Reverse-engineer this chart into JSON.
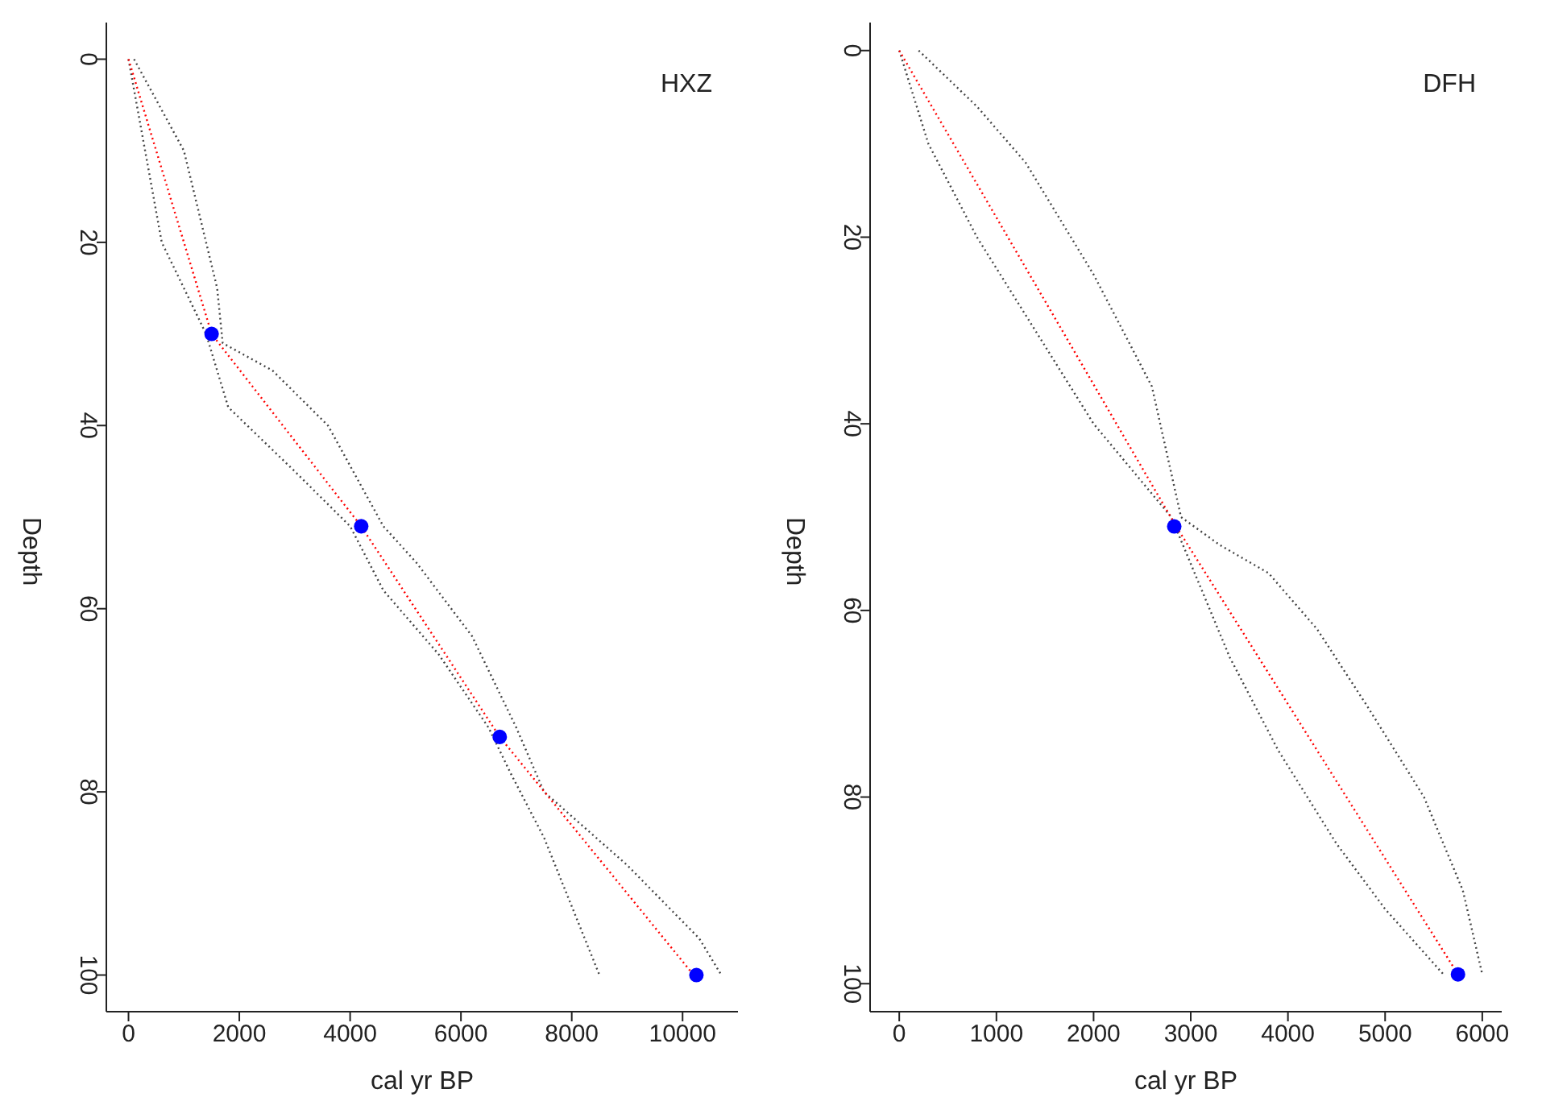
{
  "chart_data": [
    {
      "type": "line",
      "annotations": [
        "HXZ"
      ],
      "xlabel": "cal yr BP",
      "ylabel": "Depth",
      "xlim": [
        -400,
        11000
      ],
      "xticks": [
        0,
        2000,
        4000,
        6000,
        8000,
        10000
      ],
      "ylim": [
        104,
        -4
      ],
      "yticks": [
        0,
        20,
        40,
        60,
        80,
        100
      ],
      "line_style": "dotted",
      "marker": "none",
      "series": [
        {
          "color": "#444444",
          "x": [
            0,
            600,
            1400,
            1800,
            3000,
            4000,
            4600,
            5600,
            6500,
            6900,
            7500,
            8500
          ],
          "values": [
            0,
            20,
            30,
            38,
            45,
            51,
            58,
            65,
            73,
            78,
            85,
            100
          ]
        },
        {
          "color": "#444444",
          "x": [
            100,
            1000,
            1600,
            1700,
            2600,
            3600,
            4600,
            5200,
            6200,
            7000,
            7500,
            9000,
            10300,
            10700
          ],
          "values": [
            0,
            10,
            25,
            31,
            34,
            40,
            51,
            55,
            63,
            73,
            80,
            88,
            96,
            100
          ]
        },
        {
          "color": "#ff0000",
          "x": [
            0,
            1500,
            4200,
            6700,
            10200
          ],
          "values": [
            0,
            30,
            51,
            74,
            100
          ]
        },
        {
          "type": "scatter",
          "marker": "circle",
          "color": "#0000ff",
          "x": [
            1500,
            4200,
            6700,
            10250
          ],
          "values": [
            30,
            51,
            74,
            100
          ]
        }
      ]
    },
    {
      "type": "line",
      "annotations": [
        "DFH"
      ],
      "xlabel": "cal yr BP",
      "ylabel": "Depth",
      "xlim": [
        -300,
        6200
      ],
      "xticks": [
        0,
        1000,
        2000,
        3000,
        4000,
        5000,
        6000
      ],
      "ylim": [
        103,
        -3
      ],
      "yticks": [
        0,
        20,
        40,
        60,
        80,
        100
      ],
      "line_style": "dotted",
      "marker": "none",
      "series": [
        {
          "color": "#444444",
          "x": [
            0,
            300,
            800,
            1400,
            2000,
            2800,
            3000,
            3400,
            3900,
            4500,
            5000,
            5600
          ],
          "values": [
            0,
            10,
            20,
            30,
            40,
            50,
            55,
            65,
            75,
            85,
            92,
            99
          ]
        },
        {
          "color": "#444444",
          "x": [
            200,
            800,
            1300,
            2000,
            2600,
            2900,
            3300,
            3800,
            4300,
            4800,
            5400,
            5800,
            6000
          ],
          "values": [
            0,
            6,
            12,
            24,
            36,
            50,
            53,
            56,
            62,
            70,
            80,
            90,
            99
          ]
        },
        {
          "color": "#ff0000",
          "x": [
            0,
            2850,
            5750
          ],
          "values": [
            0,
            51,
            99
          ]
        },
        {
          "type": "scatter",
          "marker": "circle",
          "color": "#0000ff",
          "x": [
            2830,
            5750
          ],
          "values": [
            51,
            99
          ]
        }
      ]
    }
  ]
}
